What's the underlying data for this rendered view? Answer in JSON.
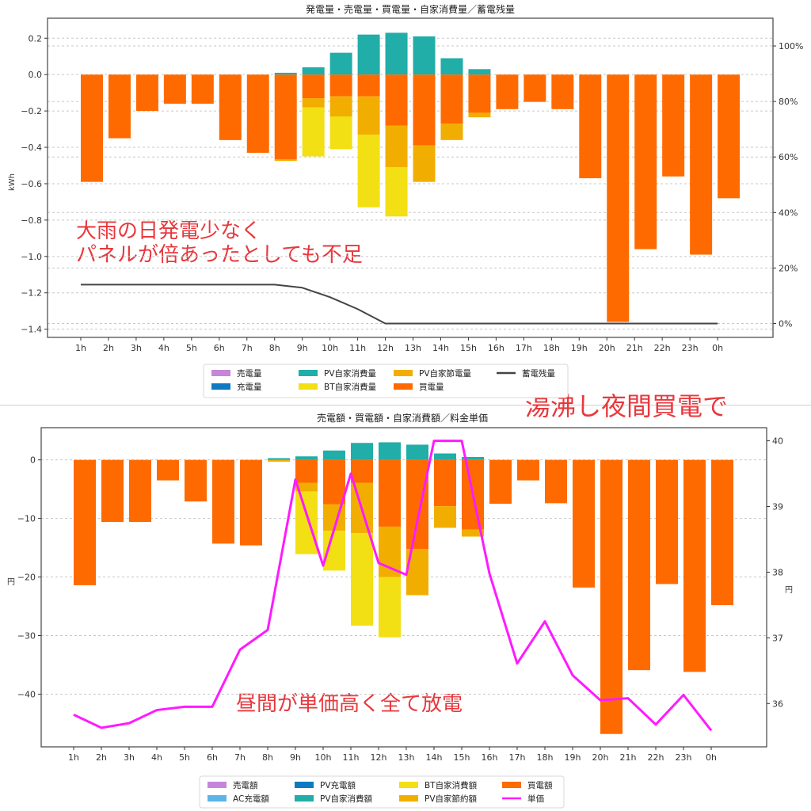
{
  "chart_data": [
    {
      "type": "bar",
      "stacked": true,
      "title": "発電量・売電量・買電量・自家消費量／蓄電残量",
      "xlabel": "",
      "ylabel": "kWh",
      "ylabel_right": "",
      "ylim": [
        -1.445,
        0.31
      ],
      "ylim_right": [
        -5,
        110
      ],
      "yticks": [
        0.2,
        0.0,
        -0.2,
        -0.4,
        -0.6,
        -0.8,
        -1.0,
        -1.2,
        -1.4
      ],
      "ytick_labels": [
        "0.2",
        "0.0",
        "−0.2",
        "−0.4",
        "−0.6",
        "−0.8",
        "−1.0",
        "−1.2",
        "−1.4"
      ],
      "yticks_right": [
        100,
        80,
        60,
        40,
        20,
        0
      ],
      "ytick_labels_right": [
        "100%",
        "80%",
        "60%",
        "40%",
        "20%",
        "0%"
      ],
      "grid": true,
      "categories": [
        "1h",
        "2h",
        "3h",
        "4h",
        "5h",
        "6h",
        "7h",
        "8h",
        "9h",
        "10h",
        "11h",
        "12h",
        "13h",
        "14h",
        "15h",
        "16h",
        "17h",
        "18h",
        "19h",
        "20h",
        "21h",
        "22h",
        "23h",
        "0h"
      ],
      "series": [
        {
          "name": "売電量",
          "color": "#c586d9",
          "kind": "bar",
          "values": [
            0,
            0,
            0,
            0,
            0,
            0,
            0,
            0,
            0,
            0,
            0,
            0,
            0,
            0,
            0,
            0,
            0,
            0,
            0,
            0,
            0,
            0,
            0,
            0
          ]
        },
        {
          "name": "充電量",
          "color": "#0f7ac2",
          "kind": "bar",
          "values": [
            0,
            0,
            0,
            0,
            0,
            0,
            0,
            0,
            0,
            0,
            0,
            0,
            0,
            0,
            0,
            0,
            0,
            0,
            0,
            0,
            0,
            0,
            0,
            0
          ]
        },
        {
          "name": "PV自家消費量",
          "color": "#21ada8",
          "kind": "bar",
          "values": [
            0,
            0,
            0,
            0,
            0,
            0,
            0,
            0.01,
            0.04,
            0.12,
            0.22,
            0.23,
            0.21,
            0.09,
            0.03,
            0,
            0,
            0,
            0,
            0,
            0,
            0,
            0,
            0
          ]
        },
        {
          "name": "BT自家消費量",
          "color": "#f2e014",
          "kind": "bar",
          "values": [
            0,
            0,
            0,
            0,
            0,
            0,
            0,
            0,
            -0.27,
            -0.18,
            -0.4,
            -0.27,
            0,
            0,
            0,
            0,
            0,
            0,
            0,
            0,
            0,
            0,
            0,
            0
          ]
        },
        {
          "name": "PV自家節電量",
          "color": "#f2ae00",
          "kind": "bar",
          "values": [
            0,
            0,
            0,
            0,
            0,
            0,
            0,
            -0.01,
            -0.05,
            -0.11,
            -0.21,
            -0.23,
            -0.2,
            -0.09,
            -0.025,
            0,
            0,
            0,
            0,
            0,
            0,
            0,
            0,
            0
          ]
        },
        {
          "name": "買電量",
          "color": "#ff6a00",
          "kind": "bar",
          "values": [
            -0.59,
            -0.35,
            -0.2,
            -0.16,
            -0.16,
            -0.36,
            -0.43,
            -0.465,
            -0.13,
            -0.12,
            -0.12,
            -0.28,
            -0.39,
            -0.27,
            -0.21,
            -0.19,
            -0.15,
            -0.19,
            -0.57,
            -1.36,
            -0.96,
            -0.56,
            -0.99,
            -0.68
          ]
        },
        {
          "name": "蓄電残量",
          "color": "#444444",
          "kind": "line",
          "axis": "right",
          "values": [
            14,
            14,
            14,
            14,
            14,
            14,
            14,
            14,
            12.9,
            9.5,
            5.2,
            0,
            0,
            0,
            0,
            0,
            0,
            0,
            0,
            0,
            0,
            0,
            0,
            0
          ]
        }
      ],
      "stack_order_negative": [
        "買電量",
        "PV自家節電量",
        "BT自家消費量"
      ],
      "legend": {
        "placement": "bottom-center",
        "columns": 4,
        "entries": [
          {
            "label": "売電量",
            "color": "#c586d9",
            "kind": "patch"
          },
          {
            "label": "充電量",
            "color": "#0f7ac2",
            "kind": "patch"
          },
          {
            "label": "PV自家消費量",
            "color": "#21ada8",
            "kind": "patch"
          },
          {
            "label": "BT自家消費量",
            "color": "#f2e014",
            "kind": "patch"
          },
          {
            "label": "PV自家節電量",
            "color": "#f2ae00",
            "kind": "patch"
          },
          {
            "label": "買電量",
            "color": "#ff6a00",
            "kind": "patch"
          },
          {
            "label": "蓄電残量",
            "color": "#444444",
            "kind": "line"
          }
        ]
      },
      "annotations": [
        "大雨の日発電少なく",
        "パネルが倍あったとしても不足"
      ]
    },
    {
      "type": "bar",
      "stacked": true,
      "title": "売電額・買電額・自家消費額／料金単価",
      "xlabel": "",
      "ylabel": "円",
      "ylabel_right": "円",
      "ylim": [
        -49,
        5.5
      ],
      "ylim_right": [
        35.34,
        40.2
      ],
      "yticks": [
        0,
        -10,
        -20,
        -30,
        -40
      ],
      "ytick_labels": [
        "0",
        "−10",
        "−20",
        "−30",
        "−40"
      ],
      "yticks_right": [
        40,
        39,
        38,
        37,
        36
      ],
      "ytick_labels_right": [
        "40",
        "39",
        "38",
        "37",
        "36"
      ],
      "grid": true,
      "categories": [
        "1h",
        "2h",
        "3h",
        "4h",
        "5h",
        "6h",
        "7h",
        "8h",
        "9h",
        "10h",
        "11h",
        "12h",
        "13h",
        "14h",
        "15h",
        "16h",
        "17h",
        "18h",
        "19h",
        "20h",
        "21h",
        "22h",
        "23h",
        "0h"
      ],
      "series": [
        {
          "name": "売電額",
          "color": "#c586d9",
          "kind": "bar",
          "values": [
            0,
            0,
            0,
            0,
            0,
            0,
            0,
            0,
            0,
            0,
            0,
            0,
            0,
            0,
            0,
            0,
            0,
            0,
            0,
            0,
            0,
            0,
            0,
            0
          ]
        },
        {
          "name": "AC充電額",
          "color": "#5db4e6",
          "kind": "bar",
          "values": [
            0,
            0,
            0,
            0,
            0,
            0,
            0,
            0,
            0,
            0,
            0,
            0,
            0,
            0,
            0,
            0,
            0,
            0,
            0,
            0,
            0,
            0,
            0,
            0
          ]
        },
        {
          "name": "PV充電額",
          "color": "#0f7ac2",
          "kind": "bar",
          "values": [
            0,
            0,
            0,
            0,
            0,
            0,
            0,
            0,
            0,
            0,
            0,
            0,
            0,
            0,
            0,
            0,
            0,
            0,
            0,
            0,
            0,
            0,
            0,
            0
          ]
        },
        {
          "name": "PV自家消費額",
          "color": "#21ada8",
          "kind": "bar",
          "values": [
            0,
            0,
            0,
            0,
            0,
            0,
            0,
            0.3,
            0.6,
            1.6,
            2.9,
            3.0,
            2.6,
            1.1,
            0.5,
            0,
            0,
            0,
            0,
            0,
            0,
            0,
            0,
            0
          ]
        },
        {
          "name": "BT自家消費額",
          "color": "#f2e014",
          "kind": "bar",
          "values": [
            0,
            0,
            0,
            0,
            0,
            0,
            0,
            0,
            -10.7,
            -6.8,
            -15.8,
            -10.3,
            0,
            0,
            0,
            0,
            0,
            0,
            0,
            0,
            0,
            0,
            0,
            0
          ]
        },
        {
          "name": "PV自家節約額",
          "color": "#f2ae00",
          "kind": "bar",
          "values": [
            0,
            0,
            0,
            0,
            0,
            0,
            0,
            -0.3,
            -1.5,
            -4.5,
            -8.6,
            -8.6,
            -7.9,
            -3.7,
            -1.2,
            0,
            0,
            0,
            0,
            0,
            0,
            0,
            0,
            0
          ]
        },
        {
          "name": "買電額",
          "color": "#ff6a00",
          "kind": "bar",
          "values": [
            -21.4,
            -10.6,
            -10.6,
            -3.5,
            -7.1,
            -14.3,
            -14.6,
            0,
            -3.9,
            -7.6,
            -3.9,
            -11.4,
            -15.2,
            -7.9,
            -11.9,
            -7.5,
            -3.5,
            -7.4,
            -21.8,
            -46.8,
            -35.9,
            -21.2,
            -36.2,
            -24.8
          ]
        },
        {
          "name": "単価",
          "color": "#ff1aff",
          "kind": "line",
          "axis": "right",
          "values": [
            35.83,
            35.63,
            35.7,
            35.9,
            35.95,
            35.95,
            36.82,
            37.12,
            39.41,
            38.1,
            39.5,
            38.14,
            37.96,
            40.0,
            40.0,
            37.98,
            36.61,
            37.25,
            36.43,
            36.05,
            36.08,
            35.68,
            36.13,
            35.59
          ]
        }
      ],
      "stack_order_negative": [
        "買電額",
        "PV自家節約額",
        "BT自家消費額"
      ],
      "legend": {
        "placement": "bottom-center",
        "columns": 4,
        "entries": [
          {
            "label": "売電額",
            "color": "#c586d9",
            "kind": "patch"
          },
          {
            "label": "AC充電額",
            "color": "#5db4e6",
            "kind": "patch"
          },
          {
            "label": "PV充電額",
            "color": "#0f7ac2",
            "kind": "patch"
          },
          {
            "label": "PV自家消費額",
            "color": "#21ada8",
            "kind": "patch"
          },
          {
            "label": "BT自家消費額",
            "color": "#f2e014",
            "kind": "patch"
          },
          {
            "label": "PV自家節約額",
            "color": "#f2ae00",
            "kind": "patch"
          },
          {
            "label": "買電額",
            "color": "#ff6a00",
            "kind": "patch"
          },
          {
            "label": "単価",
            "color": "#ff1aff",
            "kind": "line"
          }
        ]
      },
      "annotations": [
        "昼間が単価高く全て放電"
      ]
    }
  ],
  "overlay_annotations": {
    "middle_note": "湯沸し夜間買電で"
  }
}
